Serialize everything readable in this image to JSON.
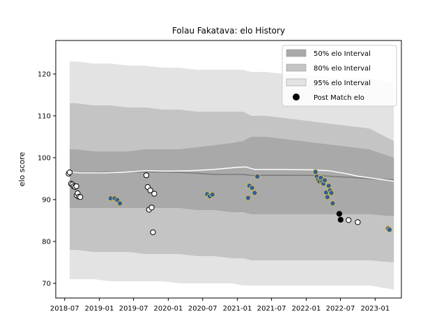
{
  "chart_data": {
    "type": "line",
    "title": "Folau Fakatava: elo History",
    "xlabel": "",
    "ylabel": "elo score",
    "x_range": [
      "2018-05-15",
      "2023-05-20"
    ],
    "ylim": [
      66.5,
      128
    ],
    "x_ticks": [
      {
        "date": "2018-07-01",
        "label": "2018-07"
      },
      {
        "date": "2019-01-01",
        "label": "2019-01"
      },
      {
        "date": "2019-07-01",
        "label": "2019-07"
      },
      {
        "date": "2020-01-01",
        "label": "2020-01"
      },
      {
        "date": "2020-07-01",
        "label": "2020-07"
      },
      {
        "date": "2021-01-01",
        "label": "2021-01"
      },
      {
        "date": "2021-07-01",
        "label": "2021-07"
      },
      {
        "date": "2022-01-01",
        "label": "2022-01"
      },
      {
        "date": "2022-07-01",
        "label": "2022-07"
      },
      {
        "date": "2023-01-01",
        "label": "2023-01"
      }
    ],
    "y_ticks": [
      70,
      80,
      90,
      100,
      110,
      120
    ],
    "grid": false,
    "legend_position": "top-right",
    "legend": [
      {
        "label": "50% elo Interval",
        "kind": "band",
        "color": "#a9a9a9"
      },
      {
        "label": "80% elo Interval",
        "kind": "band",
        "color": "#c4c4c4"
      },
      {
        "label": "95% elo Interval",
        "kind": "band",
        "color": "#e3e3e3"
      },
      {
        "label": "Post Match elo",
        "kind": "marker",
        "color": "#000000"
      }
    ],
    "bands": {
      "x": [
        "2018-07-28",
        "2018-09-01",
        "2018-12-01",
        "2019-03-01",
        "2019-06-01",
        "2019-09-01",
        "2019-12-01",
        "2020-03-01",
        "2020-06-01",
        "2020-09-01",
        "2020-12-01",
        "2021-02-01",
        "2021-03-15",
        "2021-06-01",
        "2021-09-01",
        "2021-12-01",
        "2022-03-01",
        "2022-06-01",
        "2022-09-01",
        "2022-12-01",
        "2023-04-10"
      ],
      "p95_upper": [
        123,
        123,
        122.5,
        122.5,
        122,
        122,
        121.5,
        121.5,
        121,
        121,
        121,
        121,
        120.5,
        120.5,
        120,
        120,
        119.5,
        119,
        119,
        119,
        118
      ],
      "p80_upper": [
        113,
        113,
        112.5,
        112.5,
        112,
        112,
        111.5,
        111.5,
        111,
        111,
        111,
        111,
        110,
        110,
        109.5,
        109,
        108.5,
        108,
        107.5,
        107,
        104
      ],
      "p50_upper": [
        102,
        102,
        101.5,
        101.5,
        101.5,
        102,
        102,
        102,
        102.5,
        103,
        103.5,
        104,
        105,
        105,
        104.5,
        104,
        103.5,
        103,
        102.5,
        102,
        100
      ],
      "median": [
        96.7,
        96.5,
        96.5,
        96.6,
        96.6,
        96.6,
        96.6,
        96.5,
        96.3,
        96,
        96,
        96,
        95.8,
        95.8,
        95.8,
        95.8,
        95.8,
        95.5,
        95.3,
        95,
        94.7
      ],
      "p50_lower": [
        88,
        88,
        88,
        88,
        88,
        88,
        88,
        88,
        87.5,
        87.5,
        87,
        87,
        86.5,
        86.5,
        86.5,
        86.5,
        86.5,
        86.5,
        86.5,
        86.5,
        86
      ],
      "p80_lower": [
        78,
        78,
        77.5,
        77.5,
        77.5,
        77,
        77,
        77,
        76.5,
        76.5,
        76,
        76,
        75.5,
        75.5,
        75.5,
        75.5,
        75.5,
        75.5,
        75.5,
        75.5,
        75
      ],
      "p95_lower": [
        71,
        71,
        71,
        70.5,
        70.5,
        70.5,
        70.5,
        70,
        70,
        70,
        70,
        69.5,
        69.5,
        69.5,
        69.5,
        69.5,
        69.5,
        69.5,
        69.5,
        69.5,
        68.5
      ]
    },
    "elo_line": {
      "color": "#ffffff",
      "x": [
        "2018-07-28",
        "2018-09-15",
        "2019-02-01",
        "2019-06-01",
        "2019-09-01",
        "2020-01-01",
        "2020-05-01",
        "2020-09-01",
        "2021-01-01",
        "2021-02-15",
        "2021-04-01",
        "2021-09-01",
        "2022-02-01",
        "2022-05-01",
        "2022-08-01",
        "2022-10-01",
        "2023-04-10"
      ],
      "y": [
        96.6,
        96.4,
        96.4,
        96.6,
        96.9,
        96.8,
        96.9,
        97.2,
        97.7,
        97.8,
        97.2,
        97.2,
        97.1,
        96.9,
        96.2,
        95.6,
        94.4
      ]
    },
    "points": [
      {
        "x": "2018-07-22",
        "y": 96.2,
        "style": "white"
      },
      {
        "x": "2018-07-28",
        "y": 96.5,
        "style": "white"
      },
      {
        "x": "2018-08-04",
        "y": 93.8,
        "style": "white"
      },
      {
        "x": "2018-08-11",
        "y": 93.6,
        "style": "white"
      },
      {
        "x": "2018-08-18",
        "y": 93.2,
        "style": "white"
      },
      {
        "x": "2018-08-25",
        "y": 93.0,
        "style": "white"
      },
      {
        "x": "2018-09-01",
        "y": 93.2,
        "style": "white"
      },
      {
        "x": "2018-09-03",
        "y": 91.0,
        "style": "white"
      },
      {
        "x": "2018-09-08",
        "y": 91.5,
        "style": "white"
      },
      {
        "x": "2018-09-15",
        "y": 90.7,
        "style": "white"
      },
      {
        "x": "2018-09-22",
        "y": 90.6,
        "style": "white"
      },
      {
        "x": "2019-03-02",
        "y": 90.3,
        "style": "blue"
      },
      {
        "x": "2019-03-23",
        "y": 90.3,
        "style": "blue"
      },
      {
        "x": "2019-04-06",
        "y": 89.9,
        "style": "blue"
      },
      {
        "x": "2019-04-20",
        "y": 89.1,
        "style": "blue"
      },
      {
        "x": "2019-09-07",
        "y": 95.8,
        "style": "white"
      },
      {
        "x": "2019-09-14",
        "y": 93.0,
        "style": "white"
      },
      {
        "x": "2019-09-21",
        "y": 87.6,
        "style": "white"
      },
      {
        "x": "2019-09-28",
        "y": 92.2,
        "style": "white"
      },
      {
        "x": "2019-10-05",
        "y": 88.1,
        "style": "white"
      },
      {
        "x": "2019-10-12",
        "y": 82.2,
        "style": "white"
      },
      {
        "x": "2019-10-19",
        "y": 91.4,
        "style": "white"
      },
      {
        "x": "2020-07-25",
        "y": 91.3,
        "style": "blue"
      },
      {
        "x": "2020-08-08",
        "y": 90.8,
        "style": "blue"
      },
      {
        "x": "2020-08-22",
        "y": 91.2,
        "style": "blue"
      },
      {
        "x": "2021-02-27",
        "y": 90.4,
        "style": "blue"
      },
      {
        "x": "2021-03-06",
        "y": 93.3,
        "style": "blue"
      },
      {
        "x": "2021-03-20",
        "y": 92.8,
        "style": "blue"
      },
      {
        "x": "2021-04-03",
        "y": 91.6,
        "style": "blue"
      },
      {
        "x": "2021-04-17",
        "y": 95.5,
        "style": "blue"
      },
      {
        "x": "2022-02-19",
        "y": 96.6,
        "style": "blue"
      },
      {
        "x": "2022-02-26",
        "y": 95.5,
        "style": "blue"
      },
      {
        "x": "2022-03-05",
        "y": 94.7,
        "style": "blue"
      },
      {
        "x": "2022-03-12",
        "y": 94.3,
        "style": "blue"
      },
      {
        "x": "2022-03-19",
        "y": 95.2,
        "style": "blue"
      },
      {
        "x": "2022-03-26",
        "y": 94.2,
        "style": "blue"
      },
      {
        "x": "2022-04-02",
        "y": 93.8,
        "style": "blue"
      },
      {
        "x": "2022-04-09",
        "y": 94.6,
        "style": "blue"
      },
      {
        "x": "2022-04-16",
        "y": 91.7,
        "style": "blue"
      },
      {
        "x": "2022-04-23",
        "y": 90.6,
        "style": "blue"
      },
      {
        "x": "2022-04-30",
        "y": 93.3,
        "style": "blue"
      },
      {
        "x": "2022-05-07",
        "y": 92.2,
        "style": "blue"
      },
      {
        "x": "2022-05-14",
        "y": 91.6,
        "style": "blue"
      },
      {
        "x": "2022-05-21",
        "y": 89.1,
        "style": "blue"
      },
      {
        "x": "2022-06-25",
        "y": 86.6,
        "style": "black"
      },
      {
        "x": "2022-07-02",
        "y": 85.2,
        "style": "black"
      },
      {
        "x": "2022-08-13",
        "y": 85.1,
        "style": "white"
      },
      {
        "x": "2022-10-01",
        "y": 84.6,
        "style": "white"
      },
      {
        "x": "2023-03-11",
        "y": 83.1,
        "style": "blue"
      },
      {
        "x": "2023-03-18",
        "y": 82.8,
        "style": "blue"
      }
    ]
  }
}
